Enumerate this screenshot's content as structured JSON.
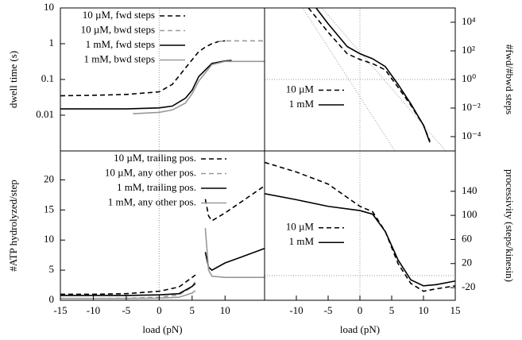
{
  "chart_data": [
    {
      "type": "line",
      "ylabel": "dwell time (s)",
      "xlim": [
        -15,
        16
      ],
      "ylim": [
        0.001,
        10
      ],
      "yscale": "log",
      "yticks": [
        0.01,
        0.1,
        1,
        10
      ],
      "yaxis": "left",
      "ref_x": 0,
      "legend": "top-left",
      "series": [
        {
          "name": "10 µM, fwd steps",
          "color": "#000000",
          "dash": "dashed",
          "x": [
            -15,
            -10,
            -5,
            0,
            2,
            4,
            6,
            7,
            8,
            9,
            10
          ],
          "values": [
            0.035,
            0.036,
            0.038,
            0.045,
            0.073,
            0.21,
            0.6,
            0.8,
            1.0,
            1.15,
            1.2
          ]
        },
        {
          "name": "10 µM, bwd steps",
          "color": "#999999",
          "dash": "dashed",
          "x": [
            9,
            10,
            12,
            14,
            16
          ],
          "values": [
            1.15,
            1.2,
            1.2,
            1.2,
            1.2
          ]
        },
        {
          "name": "1 mM, fwd steps",
          "color": "#000000",
          "dash": "solid",
          "x": [
            -15,
            -10,
            -5,
            0,
            2,
            4,
            5,
            6,
            8,
            10,
            11
          ],
          "values": [
            0.015,
            0.015,
            0.015,
            0.016,
            0.018,
            0.03,
            0.05,
            0.12,
            0.28,
            0.33,
            0.34
          ]
        },
        {
          "name": "1 mM, bwd steps",
          "color": "#999999",
          "dash": "solid",
          "x": [
            -4,
            0,
            2,
            4,
            5,
            6,
            8,
            10,
            12,
            16
          ],
          "values": [
            0.011,
            0.012,
            0.014,
            0.022,
            0.04,
            0.09,
            0.26,
            0.32,
            0.32,
            0.32
          ]
        }
      ]
    },
    {
      "type": "line",
      "ylabel": "#fwd/#bwd steps",
      "xlim": [
        -15,
        15
      ],
      "ylim": [
        1e-05,
        100000
      ],
      "yscale": "log",
      "yticks": [
        {
          "value": 0.0001,
          "label": "10⁻⁴"
        },
        {
          "value": 0.01,
          "label": "10⁻²"
        },
        {
          "value": 1,
          "label": "10⁰"
        },
        {
          "value": 100,
          "label": "10²"
        },
        {
          "value": 10000,
          "label": "10⁴"
        }
      ],
      "yaxis": "right",
      "ref_x": 0,
      "ref_y": 1,
      "legend": "bottom-left",
      "guides": [
        {
          "x": [
            -9,
            5.5
          ],
          "values": [
            100000,
            1e-05
          ]
        },
        {
          "x": [
            -6,
            13.5
          ],
          "values": [
            100000,
            1e-05
          ]
        }
      ],
      "series": [
        {
          "name": "10 µM",
          "color": "#000000",
          "dash": "dashed",
          "x": [
            -8.1,
            -5,
            -2,
            0,
            2,
            4,
            6,
            8,
            10,
            11
          ],
          "values": [
            100000,
            2000,
            63,
            25,
            12.6,
            4.7,
            0.28,
            0.016,
            0.00063,
            5e-05
          ]
        },
        {
          "name": "1 mM",
          "color": "#000000",
          "dash": "solid",
          "x": [
            -6.9,
            -5,
            -2,
            0,
            2,
            4,
            6,
            8,
            10,
            11
          ],
          "values": [
            100000,
            7900,
            200,
            63,
            28,
            7.9,
            0.45,
            0.02,
            0.00063,
            4e-05
          ]
        }
      ]
    },
    {
      "type": "line",
      "xlabel": "load (pN)",
      "ylabel": "#ATP hydrolyzed/step",
      "xlim": [
        -15,
        16
      ],
      "ylim": [
        0,
        24.8
      ],
      "xticks": [
        -15,
        -10,
        -5,
        0,
        5,
        10
      ],
      "yticks": [
        0,
        5,
        10,
        15,
        20
      ],
      "yaxis": "left",
      "ref_x": 0,
      "legend": "top-left",
      "series": [
        {
          "name": "10 µM, trailing pos.",
          "color": "#000000",
          "dash": "dashed",
          "x": [
            -15,
            -10,
            -5,
            0,
            3,
            5,
            5.5,
            6.5,
            7,
            7.5,
            8,
            10,
            12,
            14,
            16
          ],
          "values": [
            1.0,
            1.0,
            1.1,
            1.5,
            2.2,
            3.8,
            4.2,
            null,
            16.8,
            14,
            13.2,
            14.5,
            16,
            17.5,
            19
          ]
        },
        {
          "name": "10 µM, any other pos.",
          "color": "#999999",
          "dash": "dashed",
          "x": [
            -15,
            -10,
            -5,
            0,
            3,
            5,
            5.5
          ],
          "values": [
            0.3,
            0.3,
            0.35,
            0.5,
            0.9,
            2.2,
            3.3
          ]
        },
        {
          "name": "1 mM, trailing pos.",
          "color": "#000000",
          "dash": "solid",
          "x": [
            -15,
            -10,
            -5,
            0,
            3,
            5,
            5.5,
            6.5,
            7,
            7.5,
            8,
            10,
            12,
            14,
            16
          ],
          "values": [
            0.8,
            0.8,
            0.8,
            0.9,
            1.1,
            2.3,
            2.8,
            null,
            8,
            5.5,
            5,
            6.2,
            7,
            7.8,
            8.6
          ]
        },
        {
          "name": "1 mM, any other pos.",
          "color": "#999999",
          "dash": "solid",
          "x": [
            -15,
            -10,
            -5,
            0,
            3,
            5,
            5.5,
            6.5,
            7,
            7.5,
            8,
            10,
            16
          ],
          "values": [
            0.3,
            0.3,
            0.3,
            0.35,
            0.5,
            1.2,
            1.6,
            null,
            12,
            5,
            4,
            3.8,
            3.8
          ]
        }
      ]
    },
    {
      "type": "line",
      "xlabel": "load (pN)",
      "ylabel": "processivity (steps/kinesin)",
      "xlim": [
        -15,
        15
      ],
      "ylim": [
        -41,
        207
      ],
      "xticks": [
        -10,
        -5,
        0,
        5,
        10,
        15
      ],
      "yticks": [
        -20,
        20,
        60,
        100,
        140
      ],
      "yaxis": "right",
      "ref_x": 0,
      "ref_y": 0,
      "legend": "center-left",
      "series": [
        {
          "name": "10 µM",
          "color": "#000000",
          "dash": "dashed",
          "x": [
            -15,
            -10,
            -5,
            0,
            2,
            4,
            6,
            8,
            10,
            12,
            15
          ],
          "values": [
            188,
            172,
            152,
            115,
            106,
            73,
            20,
            -13,
            -26,
            -22,
            -17
          ]
        },
        {
          "name": "1 mM",
          "color": "#000000",
          "dash": "solid",
          "x": [
            -15,
            -10,
            -5,
            0,
            2,
            4,
            6,
            8,
            10,
            12,
            15
          ],
          "values": [
            136,
            126,
            115,
            108,
            102,
            73,
            26,
            -7,
            -17,
            -15,
            -9
          ]
        }
      ]
    }
  ]
}
